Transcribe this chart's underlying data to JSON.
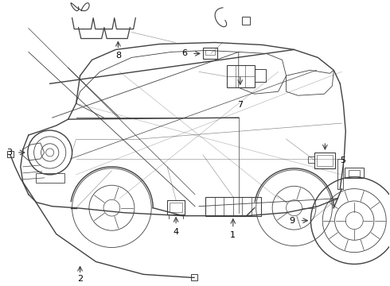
{
  "bg_color": "#ffffff",
  "line_color": "#404040",
  "label_color": "#000000",
  "fig_width": 4.9,
  "fig_height": 3.6,
  "dpi": 100,
  "car": {
    "body_lw": 1.0,
    "detail_lw": 0.6,
    "thin_lw": 0.5
  }
}
